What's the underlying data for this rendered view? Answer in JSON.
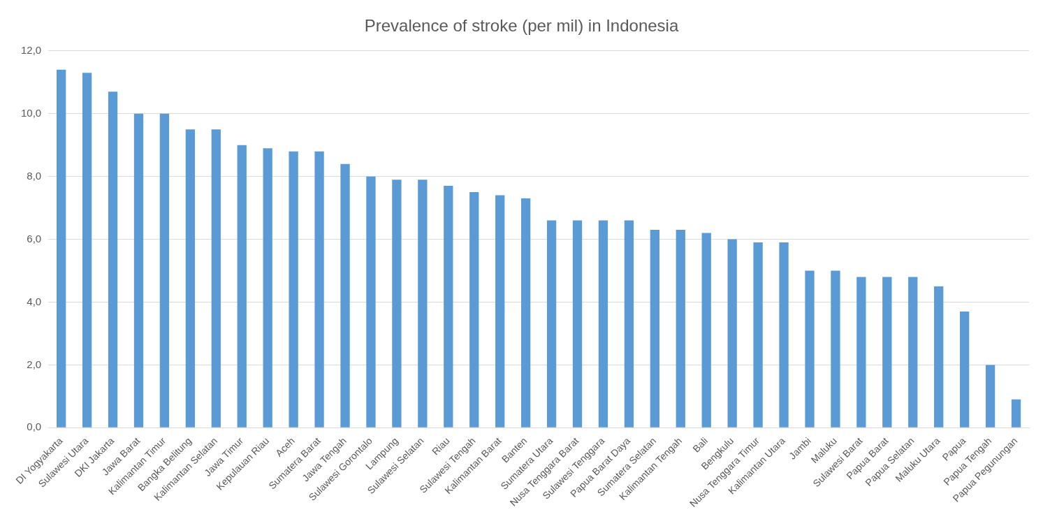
{
  "chart_data": {
    "type": "bar",
    "title": "Prevalence of stroke (per mil) in Indonesia",
    "categories": [
      "DI Yogyakarta",
      "Sulawesi Utara",
      "DKI Jakarta",
      "Jawa Barat",
      "Kalimantan Timur",
      "Bangka Belitung",
      "Kalimantan Selatan",
      "Jawa Timur",
      "Kepulauan Riau",
      "Aceh",
      "Sumatera Barat",
      "Jawa Tengah",
      "Sulawesi Gorontalo",
      "Lampung",
      "Sulawesi Selatan",
      "Riau",
      "Sulawesi Tengah",
      "Kalimantan Barat",
      "Banten",
      "Sumatera Utara",
      "Nusa Tenggara Barat",
      "Sulawesi Tenggara",
      "Papua Barat Daya",
      "Sumatera Selatan",
      "Kalimantan Tengah",
      "Bali",
      "Bengkulu",
      "Nusa Tenggara Timur",
      "Kalimantan Utara",
      "Jambi",
      "Maluku",
      "Sulawesi Barat",
      "Papua Barat",
      "Papua Selatan",
      "Maluku Utara",
      "Papua",
      "Papua Tengah",
      "Papua Pegunungan"
    ],
    "values": [
      11.4,
      11.3,
      10.7,
      10.0,
      10.0,
      9.5,
      9.5,
      9.0,
      8.9,
      8.8,
      8.8,
      8.4,
      8.0,
      7.9,
      7.9,
      7.7,
      7.5,
      7.4,
      7.3,
      6.6,
      6.6,
      6.6,
      6.6,
      6.3,
      6.3,
      6.2,
      6.0,
      5.9,
      5.9,
      5.0,
      5.0,
      4.8,
      4.8,
      4.8,
      4.5,
      3.7,
      2.0,
      0.9
    ],
    "color": "#5b9bd5",
    "ylim": [
      0,
      12
    ],
    "yticks": [
      {
        "value": 0,
        "label": "0,0"
      },
      {
        "value": 2,
        "label": "2,0"
      },
      {
        "value": 4,
        "label": "4,0"
      },
      {
        "value": 6,
        "label": "6,0"
      },
      {
        "value": 8,
        "label": "8,0"
      },
      {
        "value": 10,
        "label": "10,0"
      },
      {
        "value": 12,
        "label": "12,0"
      }
    ],
    "grid": true
  }
}
